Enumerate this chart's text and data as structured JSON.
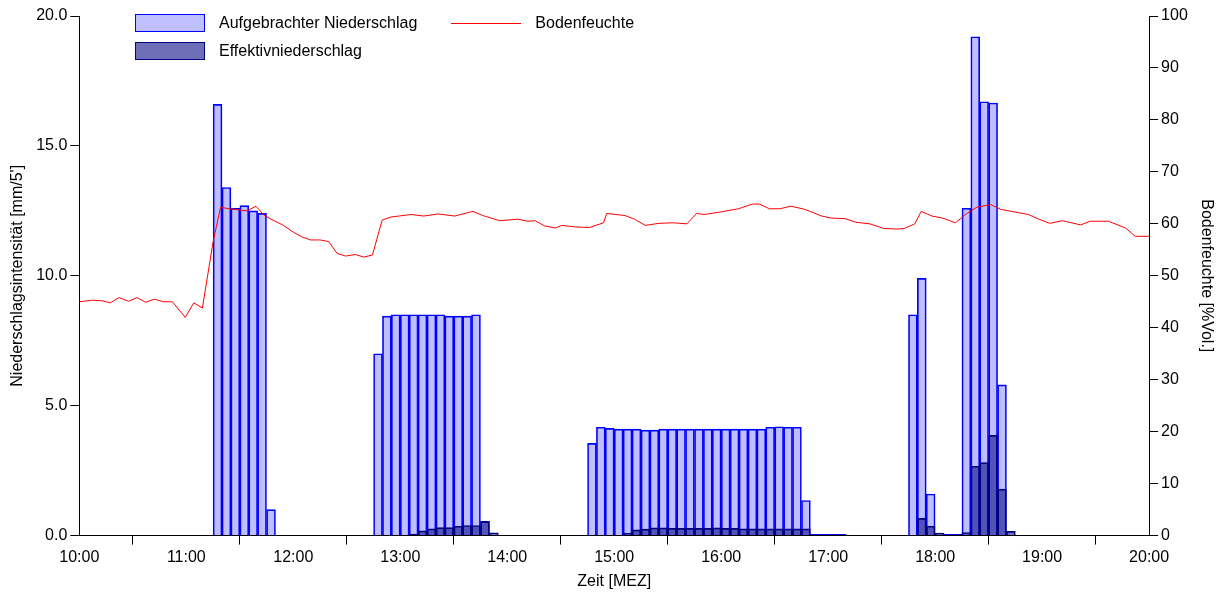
{
  "chart_data": {
    "type": "bar",
    "xlabel": "Zeit [MEZ]",
    "ylabel": "Niederschlagsintensität [mm/5']",
    "y2label": "Bodenfeuchte [%Vol.]",
    "xlim": [
      10,
      20
    ],
    "xticks": [
      {
        "value": 10,
        "label": "10:00"
      },
      {
        "value": 11,
        "label": "11:00"
      },
      {
        "value": 12,
        "label": "12:00"
      },
      {
        "value": 13,
        "label": "13:00"
      },
      {
        "value": 14,
        "label": "14:00"
      },
      {
        "value": 15,
        "label": "15:00"
      },
      {
        "value": 16,
        "label": "16:00"
      },
      {
        "value": 17,
        "label": "17:00"
      },
      {
        "value": 18,
        "label": "18:00"
      },
      {
        "value": 19,
        "label": "19:00"
      },
      {
        "value": 20,
        "label": "20:00"
      }
    ],
    "ylim": [
      0,
      20
    ],
    "yticks": [
      {
        "value": 0,
        "label": "0.0"
      },
      {
        "value": 5,
        "label": "5.0"
      },
      {
        "value": 10,
        "label": "10.0"
      },
      {
        "value": 15,
        "label": "15.0"
      },
      {
        "value": 20,
        "label": "20.0"
      }
    ],
    "y2lim": [
      0,
      100
    ],
    "y2ticks": [
      0,
      10,
      20,
      30,
      40,
      50,
      60,
      70,
      80,
      90,
      100
    ],
    "grid": false,
    "legend": "top left",
    "marker": "none",
    "line_style": "solid",
    "series": [
      {
        "name": "Aufgebrachter Niederschlag",
        "color": "#0000ff",
        "x": [
          11.292,
          11.375,
          11.458,
          11.542,
          11.625,
          11.708,
          11.792,
          12.792,
          12.875,
          12.958,
          13.042,
          13.125,
          13.208,
          13.292,
          13.375,
          13.458,
          13.542,
          13.625,
          13.708,
          13.792,
          14.792,
          14.875,
          14.958,
          15.042,
          15.125,
          15.208,
          15.292,
          15.375,
          15.458,
          15.542,
          15.625,
          15.708,
          15.792,
          15.875,
          15.958,
          16.042,
          16.125,
          16.208,
          16.292,
          16.375,
          16.458,
          16.542,
          16.625,
          16.708,
          16.792,
          16.875,
          16.958,
          17.042,
          17.125,
          17.792,
          17.875,
          17.958,
          18.125,
          18.208,
          18.292,
          18.375,
          18.458,
          18.542,
          18.625
        ],
        "values": [
          16.6,
          13.4,
          12.6,
          12.7,
          12.5,
          12.4,
          1.0,
          7.0,
          8.45,
          8.5,
          8.5,
          8.5,
          8.5,
          8.5,
          8.5,
          8.45,
          8.45,
          8.45,
          8.5,
          0.55,
          3.55,
          4.17,
          4.13,
          4.1,
          4.1,
          4.1,
          4.06,
          4.06,
          4.1,
          4.1,
          4.1,
          4.1,
          4.1,
          4.1,
          4.1,
          4.1,
          4.1,
          4.1,
          4.1,
          4.1,
          4.17,
          4.19,
          4.17,
          4.17,
          1.35,
          0.05,
          0.05,
          0.05,
          0.05,
          8.5,
          9.9,
          1.6,
          0.05,
          0.05,
          12.6,
          19.2,
          16.7,
          16.65,
          5.8
        ]
      },
      {
        "name": "Effektivniederschlag",
        "color": "#000080",
        "x": [
          13.125,
          13.208,
          13.292,
          13.375,
          13.458,
          13.542,
          13.625,
          13.708,
          13.792,
          13.875,
          15.125,
          15.208,
          15.292,
          15.375,
          15.458,
          15.542,
          15.625,
          15.708,
          15.792,
          15.875,
          15.958,
          16.042,
          16.125,
          16.208,
          16.292,
          16.375,
          16.458,
          16.542,
          16.625,
          16.708,
          16.792,
          17.875,
          17.958,
          18.042,
          18.292,
          18.375,
          18.458,
          18.542,
          18.625,
          18.708
        ],
        "values": [
          0.06,
          0.18,
          0.26,
          0.31,
          0.31,
          0.36,
          0.39,
          0.39,
          0.54,
          0.11,
          0.1,
          0.22,
          0.25,
          0.3,
          0.3,
          0.28,
          0.28,
          0.28,
          0.28,
          0.28,
          0.3,
          0.28,
          0.28,
          0.26,
          0.26,
          0.26,
          0.26,
          0.26,
          0.26,
          0.26,
          0.26,
          0.66,
          0.36,
          0.1,
          0.12,
          2.67,
          2.81,
          3.86,
          1.79,
          0.16
        ]
      },
      {
        "name": "Bodenfeuchte",
        "type": "line",
        "axis": "y2",
        "color": "#ff0000",
        "x": [
          10.0,
          10.12,
          10.21,
          10.29,
          10.37,
          10.46,
          10.54,
          10.62,
          10.7,
          10.79,
          10.87,
          10.99,
          11.07,
          11.15,
          11.25,
          11.32,
          11.4,
          11.48,
          11.57,
          11.65,
          11.73,
          11.82,
          11.9,
          12.0,
          12.08,
          12.16,
          12.25,
          12.33,
          12.41,
          12.49,
          12.58,
          12.66,
          12.74,
          12.83,
          12.91,
          13.1,
          13.22,
          13.35,
          13.51,
          13.68,
          13.77,
          13.93,
          14.1,
          14.19,
          14.26,
          14.35,
          14.45,
          14.51,
          14.64,
          14.77,
          14.9,
          14.93,
          15.1,
          15.19,
          15.29,
          15.42,
          15.55,
          15.68,
          15.77,
          15.84,
          16.0,
          16.16,
          16.29,
          16.36,
          16.45,
          16.55,
          16.65,
          16.78,
          16.94,
          17.03,
          17.16,
          17.26,
          17.39,
          17.52,
          17.65,
          17.71,
          17.81,
          17.87,
          17.97,
          18.07,
          18.19,
          18.29,
          18.39,
          18.52,
          18.61,
          18.74,
          18.87,
          18.97,
          19.07,
          19.19,
          19.36,
          19.45,
          19.62,
          19.78,
          19.87,
          20.0
        ],
        "values": [
          45.0,
          45.3,
          45.2,
          44.8,
          45.8,
          45.1,
          45.8,
          44.9,
          45.5,
          45.0,
          45.0,
          42.0,
          44.8,
          43.8,
          56.5,
          63.2,
          62.9,
          62.7,
          62.5,
          63.4,
          61.6,
          60.6,
          59.8,
          58.4,
          57.5,
          56.9,
          56.9,
          56.6,
          54.3,
          53.8,
          54.1,
          53.6,
          54.0,
          60.7,
          61.3,
          61.8,
          61.5,
          61.9,
          61.5,
          62.4,
          61.6,
          60.6,
          60.9,
          60.5,
          60.6,
          59.6,
          59.2,
          59.7,
          59.4,
          59.3,
          60.2,
          62.0,
          61.6,
          60.9,
          59.7,
          60.1,
          60.2,
          60.0,
          62.0,
          61.8,
          62.3,
          62.9,
          63.8,
          63.8,
          62.9,
          62.9,
          63.4,
          62.8,
          61.5,
          61.1,
          61.0,
          60.3,
          60.0,
          59.1,
          59.0,
          59.1,
          60.0,
          62.4,
          61.5,
          61.1,
          60.2,
          61.9,
          63.2,
          63.7,
          62.8,
          62.3,
          61.8,
          60.9,
          60.1,
          60.6,
          59.8,
          60.5,
          60.5,
          59.2,
          57.6,
          57.6
        ]
      }
    ]
  }
}
